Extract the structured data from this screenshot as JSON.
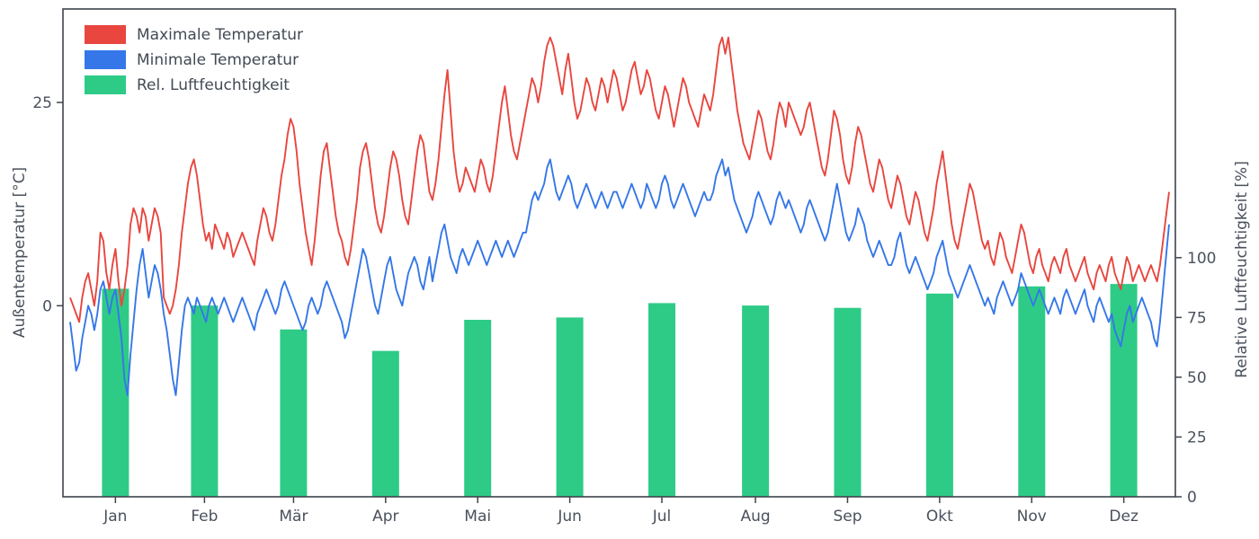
{
  "chart_data": {
    "type": "line+bar",
    "title": "",
    "grid": false,
    "legend_position": "upper-left",
    "days": 365,
    "months": [
      {
        "label": "Jan",
        "days": 31
      },
      {
        "label": "Feb",
        "days": 28
      },
      {
        "label": "Mär",
        "days": 31
      },
      {
        "label": "Apr",
        "days": 30
      },
      {
        "label": "Mai",
        "days": 31
      },
      {
        "label": "Jun",
        "days": 30
      },
      {
        "label": "Jul",
        "days": 31
      },
      {
        "label": "Aug",
        "days": 31
      },
      {
        "label": "Sep",
        "days": 30
      },
      {
        "label": "Okt",
        "days": 31
      },
      {
        "label": "Nov",
        "days": 30
      },
      {
        "label": "Dez",
        "days": 31
      }
    ],
    "left_axis": {
      "label": "Außentemperatur [°C]",
      "ticks": [
        0,
        25
      ],
      "range": [
        -23.5,
        36.5
      ]
    },
    "right_axis": {
      "label": "Relative Luftfeuchtigkeit [%]",
      "ticks": [
        0,
        25,
        50,
        75,
        100
      ],
      "range": [
        0,
        204
      ]
    },
    "frame_color": "#3e444c",
    "text_color": "#4a515c",
    "series": [
      {
        "name": "Maximale Temperatur",
        "type": "line",
        "axis": "left",
        "color": "#e8463f",
        "values": [
          1,
          0,
          -1,
          -2,
          1,
          3,
          4,
          2,
          0,
          3,
          9,
          8,
          4,
          2,
          5,
          7,
          3,
          0,
          2,
          5,
          10,
          12,
          11,
          9,
          12,
          11,
          8,
          10,
          12,
          11,
          9,
          1,
          0,
          -1,
          0,
          2,
          5,
          9,
          12,
          15,
          17,
          18,
          16,
          13,
          10,
          8,
          9,
          7,
          10,
          9,
          8,
          7,
          9,
          8,
          6,
          7,
          8,
          9,
          8,
          7,
          6,
          5,
          8,
          10,
          12,
          11,
          9,
          8,
          10,
          13,
          16,
          18,
          21,
          23,
          22,
          19,
          15,
          12,
          9,
          7,
          5,
          8,
          12,
          16,
          19,
          20,
          17,
          14,
          11,
          9,
          8,
          6,
          5,
          7,
          10,
          13,
          17,
          19,
          20,
          18,
          15,
          12,
          10,
          9,
          11,
          14,
          17,
          19,
          18,
          16,
          13,
          11,
          10,
          13,
          16,
          19,
          21,
          20,
          17,
          14,
          13,
          15,
          18,
          22,
          26,
          29,
          24,
          19,
          16,
          14,
          15,
          17,
          16,
          15,
          14,
          16,
          18,
          17,
          15,
          14,
          16,
          19,
          22,
          25,
          27,
          24,
          21,
          19,
          18,
          20,
          22,
          24,
          26,
          28,
          27,
          25,
          27,
          30,
          32,
          33,
          32,
          30,
          28,
          26,
          29,
          31,
          28,
          25,
          23,
          24,
          26,
          28,
          27,
          25,
          24,
          26,
          28,
          27,
          25,
          27,
          29,
          28,
          26,
          24,
          25,
          27,
          29,
          30,
          28,
          26,
          27,
          29,
          28,
          26,
          24,
          23,
          25,
          27,
          26,
          24,
          22,
          24,
          26,
          28,
          27,
          25,
          24,
          23,
          22,
          24,
          26,
          25,
          24,
          26,
          29,
          32,
          33,
          31,
          33,
          30,
          27,
          24,
          22,
          20,
          19,
          18,
          20,
          22,
          24,
          23,
          21,
          19,
          18,
          20,
          23,
          25,
          24,
          22,
          25,
          24,
          23,
          22,
          21,
          22,
          24,
          25,
          23,
          21,
          19,
          17,
          16,
          18,
          21,
          24,
          23,
          21,
          18,
          16,
          15,
          17,
          20,
          22,
          21,
          19,
          17,
          15,
          14,
          16,
          18,
          17,
          15,
          13,
          12,
          14,
          16,
          15,
          13,
          11,
          10,
          12,
          14,
          13,
          11,
          9,
          8,
          10,
          12,
          15,
          17,
          19,
          16,
          13,
          10,
          8,
          7,
          9,
          11,
          13,
          15,
          14,
          12,
          10,
          8,
          7,
          8,
          6,
          5,
          7,
          9,
          8,
          6,
          5,
          4,
          6,
          8,
          10,
          9,
          7,
          5,
          4,
          6,
          7,
          5,
          4,
          3,
          5,
          6,
          5,
          4,
          6,
          7,
          5,
          4,
          3,
          4,
          5,
          6,
          4,
          3,
          2,
          4,
          5,
          4,
          3,
          5,
          6,
          4,
          3,
          2,
          4,
          6,
          5,
          3,
          4,
          5,
          4,
          3,
          4,
          5,
          4,
          3,
          5,
          8,
          11,
          14
        ]
      },
      {
        "name": "Minimale Temperatur",
        "type": "line",
        "axis": "left",
        "color": "#3577e8",
        "values": [
          -2,
          -5,
          -8,
          -7,
          -4,
          -2,
          0,
          -1,
          -3,
          -1,
          2,
          3,
          1,
          -1,
          1,
          2,
          -1,
          -4,
          -9,
          -11,
          -6,
          -2,
          2,
          5,
          7,
          4,
          1,
          3,
          5,
          4,
          2,
          -1,
          -3,
          -6,
          -9,
          -11,
          -7,
          -3,
          0,
          1,
          0,
          -1,
          1,
          0,
          -1,
          -2,
          0,
          1,
          0,
          -1,
          0,
          1,
          0,
          -1,
          -2,
          -1,
          0,
          1,
          0,
          -1,
          -2,
          -3,
          -1,
          0,
          1,
          2,
          1,
          0,
          -1,
          0,
          2,
          3,
          2,
          1,
          0,
          -1,
          -2,
          -3,
          -2,
          0,
          1,
          0,
          -1,
          0,
          2,
          3,
          2,
          1,
          0,
          -1,
          -2,
          -4,
          -3,
          -1,
          1,
          3,
          5,
          7,
          6,
          4,
          2,
          0,
          -1,
          1,
          3,
          5,
          6,
          4,
          2,
          1,
          0,
          2,
          4,
          5,
          6,
          5,
          3,
          2,
          4,
          6,
          3,
          5,
          7,
          9,
          10,
          8,
          6,
          5,
          4,
          6,
          7,
          6,
          5,
          6,
          7,
          8,
          7,
          6,
          5,
          6,
          7,
          8,
          7,
          6,
          7,
          8,
          7,
          6,
          7,
          8,
          9,
          9,
          11,
          13,
          14,
          13,
          14,
          15,
          17,
          18,
          16,
          14,
          13,
          14,
          15,
          16,
          15,
          13,
          12,
          13,
          14,
          15,
          14,
          13,
          12,
          13,
          14,
          13,
          12,
          13,
          14,
          14,
          13,
          12,
          13,
          14,
          15,
          14,
          13,
          12,
          13,
          15,
          14,
          13,
          12,
          13,
          15,
          16,
          15,
          13,
          12,
          13,
          14,
          15,
          14,
          13,
          12,
          11,
          12,
          13,
          14,
          13,
          13,
          14,
          16,
          17,
          18,
          16,
          17,
          15,
          13,
          12,
          11,
          10,
          9,
          10,
          11,
          13,
          14,
          13,
          12,
          11,
          10,
          11,
          13,
          14,
          13,
          12,
          13,
          12,
          11,
          10,
          9,
          10,
          12,
          13,
          12,
          11,
          10,
          9,
          8,
          9,
          11,
          13,
          15,
          13,
          11,
          9,
          8,
          9,
          10,
          12,
          11,
          10,
          8,
          7,
          6,
          7,
          8,
          7,
          6,
          5,
          5,
          6,
          8,
          9,
          7,
          5,
          4,
          5,
          6,
          5,
          4,
          3,
          2,
          3,
          4,
          6,
          7,
          8,
          6,
          4,
          3,
          2,
          1,
          2,
          3,
          4,
          5,
          4,
          3,
          2,
          1,
          0,
          1,
          0,
          -1,
          1,
          2,
          3,
          2,
          1,
          0,
          1,
          2,
          4,
          3,
          2,
          1,
          0,
          1,
          2,
          1,
          0,
          -1,
          0,
          1,
          0,
          -1,
          1,
          2,
          1,
          0,
          -1,
          0,
          1,
          2,
          0,
          -1,
          -2,
          0,
          1,
          0,
          -1,
          -2,
          -1,
          -3,
          -4,
          -5,
          -3,
          -1,
          0,
          -2,
          -1,
          0,
          1,
          0,
          -1,
          -2,
          -4,
          -5,
          -2,
          2,
          6,
          10
        ]
      },
      {
        "name": "Rel. Luftfeuchtigkeit",
        "type": "bar",
        "axis": "right",
        "color": "#2ecb87",
        "values": [
          87,
          80,
          70,
          61,
          74,
          75,
          81,
          80,
          79,
          85,
          88,
          89
        ]
      }
    ]
  }
}
